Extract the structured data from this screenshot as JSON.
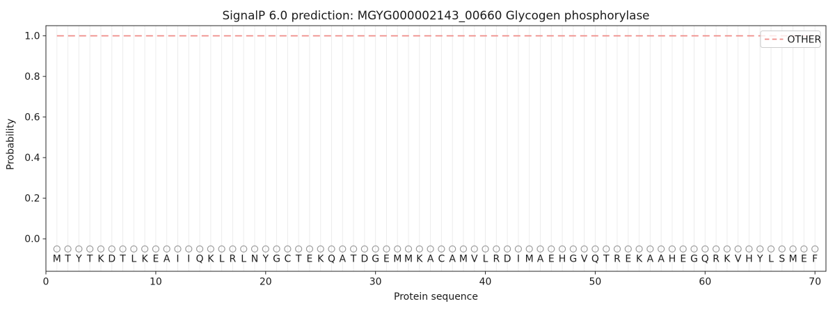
{
  "chart_data": {
    "type": "line",
    "title": "SignalP 6.0 prediction: MGYG000002143_00660 Glycogen phosphorylase",
    "xlabel": "Protein sequence",
    "ylabel": "Probability",
    "xlim": [
      0,
      71
    ],
    "ylim": [
      -0.16,
      1.05
    ],
    "x_ticks": [
      0,
      10,
      20,
      30,
      40,
      50,
      60,
      70
    ],
    "x_tick_labels": [
      "0",
      "10",
      "20",
      "30",
      "40",
      "50",
      "60",
      "70"
    ],
    "y_ticks": [
      0.0,
      0.2,
      0.4,
      0.6,
      0.8,
      1.0
    ],
    "y_tick_labels": [
      "0.0",
      "0.2",
      "0.4",
      "0.6",
      "0.8",
      "1.0"
    ],
    "grid": {
      "vertical_per_residue": true,
      "horizontal": false
    },
    "series": [
      {
        "name": "OTHER",
        "style": "dashed",
        "color": "#ef8a87",
        "x_range": [
          1,
          70
        ],
        "y_value": 1.0,
        "description": "Constant probability 1.0 for class OTHER across all 70 residues"
      }
    ],
    "sequence": "MTYTKDTLKEAIIQKLRLNYGCTEKQATDGEMMKACAMVLRDIMAEHGVQTREKAAHEGQRKVHYLSMEF",
    "sequence_length": 70,
    "residue_markers": {
      "symbol": "circle-outline",
      "y_value": -0.05
    },
    "legend": {
      "position": "upper-right",
      "entries": [
        {
          "label": "OTHER",
          "style": "dashed",
          "color": "#ef8a87"
        }
      ]
    },
    "colors": {
      "line_other": "#ef8a87",
      "grid": "#ececec",
      "marker": "#999999",
      "spine": "#262626",
      "text": "#1a1a1a",
      "sequence_text": "#1c1c1c",
      "legend_border": "#cccccc",
      "background": "#ffffff"
    }
  }
}
